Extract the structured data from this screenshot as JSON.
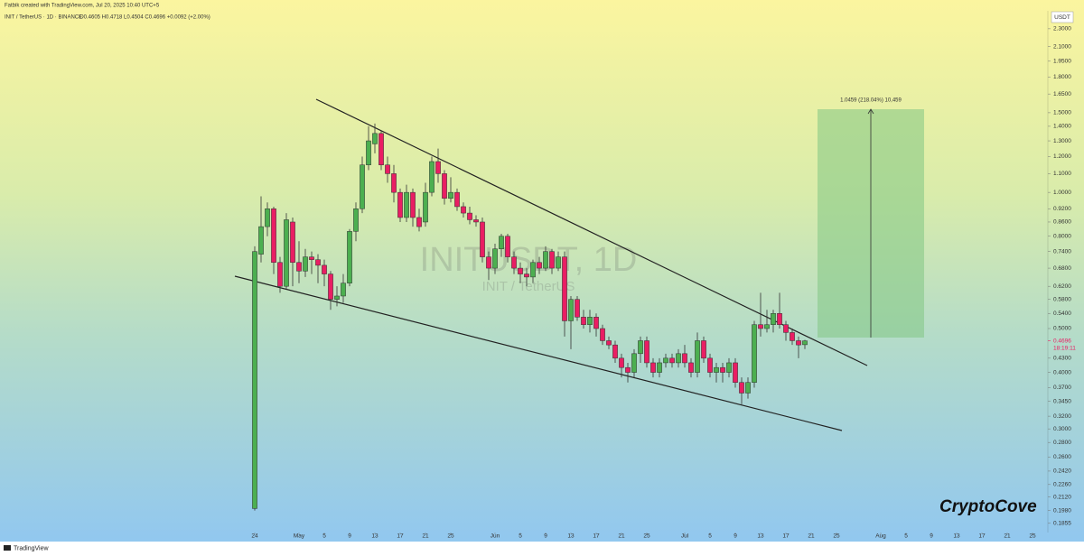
{
  "header": {
    "credit": "Fatbik created with TradingView.com, Jul 20, 2025 10:40 UTC+5",
    "symbol_line": "INIT / TetherUS · 1D · BINANCE",
    "ohlc": "O0.4605 H0.4718 L0.4504 C0.4696 +0.0092 (+2.00%)"
  },
  "chart_data": {
    "type": "candlestick",
    "watermark": "INITUSDT, 1D",
    "watermark_sub": "INIT / TetherUS",
    "y_unit": "USDT",
    "log_scale": true,
    "grid": false,
    "up_color": "#4caf50",
    "down_color": "#e91e63",
    "last_price_label": "0.4696",
    "countdown": "18:19:11",
    "annotation": "1.0459 (218.04%) 10,459",
    "x": [
      "2025-04-24",
      "2025-04-25",
      "2025-04-26",
      "2025-04-27",
      "2025-04-28",
      "2025-04-29",
      "2025-04-30",
      "2025-05-01",
      "2025-05-02",
      "2025-05-03",
      "2025-05-04",
      "2025-05-05",
      "2025-05-06",
      "2025-05-07",
      "2025-05-08",
      "2025-05-09",
      "2025-05-10",
      "2025-05-11",
      "2025-05-12",
      "2025-05-13",
      "2025-05-14",
      "2025-05-15",
      "2025-05-16",
      "2025-05-17",
      "2025-05-18",
      "2025-05-19",
      "2025-05-20",
      "2025-05-21",
      "2025-05-22",
      "2025-05-23",
      "2025-05-24",
      "2025-05-25",
      "2025-05-26",
      "2025-05-27",
      "2025-05-28",
      "2025-05-29",
      "2025-05-30",
      "2025-05-31",
      "2025-06-01",
      "2025-06-02",
      "2025-06-03",
      "2025-06-04",
      "2025-06-05",
      "2025-06-06",
      "2025-06-07",
      "2025-06-08",
      "2025-06-09",
      "2025-06-10",
      "2025-06-11",
      "2025-06-12",
      "2025-06-13",
      "2025-06-14",
      "2025-06-15",
      "2025-06-16",
      "2025-06-17",
      "2025-06-18",
      "2025-06-19",
      "2025-06-20",
      "2025-06-21",
      "2025-06-22",
      "2025-06-23",
      "2025-06-24",
      "2025-06-25",
      "2025-06-26",
      "2025-06-27",
      "2025-06-28",
      "2025-06-29",
      "2025-06-30",
      "2025-07-01",
      "2025-07-02",
      "2025-07-03",
      "2025-07-04",
      "2025-07-05",
      "2025-07-06",
      "2025-07-07",
      "2025-07-08",
      "2025-07-09",
      "2025-07-10",
      "2025-07-11",
      "2025-07-12",
      "2025-07-13",
      "2025-07-14",
      "2025-07-15",
      "2025-07-16",
      "2025-07-17",
      "2025-07-18",
      "2025-07-19",
      "2025-07-20"
    ],
    "open": [
      0.2,
      0.73,
      0.84,
      0.92,
      0.7,
      0.62,
      0.86,
      0.7,
      0.67,
      0.72,
      0.71,
      0.69,
      0.66,
      0.58,
      0.59,
      0.63,
      0.82,
      0.92,
      1.15,
      1.28,
      1.35,
      1.15,
      1.1,
      1.0,
      0.88,
      1.0,
      0.88,
      0.86,
      1.0,
      1.17,
      1.1,
      0.97,
      1.0,
      0.93,
      0.9,
      0.87,
      0.86,
      0.72,
      0.68,
      0.75,
      0.8,
      0.72,
      0.68,
      0.66,
      0.65,
      0.7,
      0.68,
      0.74,
      0.68,
      0.72,
      0.52,
      0.58,
      0.53,
      0.51,
      0.53,
      0.5,
      0.47,
      0.46,
      0.43,
      0.41,
      0.4,
      0.44,
      0.47,
      0.42,
      0.4,
      0.42,
      0.43,
      0.42,
      0.44,
      0.42,
      0.4,
      0.47,
      0.43,
      0.4,
      0.41,
      0.4,
      0.42,
      0.38,
      0.36,
      0.38,
      0.51,
      0.5,
      0.51,
      0.54,
      0.51,
      0.49,
      0.47,
      0.4605
    ],
    "high": [
      0.76,
      0.98,
      0.95,
      0.93,
      0.72,
      0.9,
      0.88,
      0.78,
      0.75,
      0.74,
      0.73,
      0.71,
      0.67,
      0.62,
      0.66,
      0.83,
      0.95,
      1.2,
      1.4,
      1.42,
      1.37,
      1.2,
      1.15,
      1.02,
      1.04,
      1.02,
      0.92,
      1.05,
      1.2,
      1.25,
      1.12,
      1.08,
      1.02,
      0.95,
      0.93,
      0.89,
      0.88,
      0.74,
      0.77,
      0.81,
      0.81,
      0.74,
      0.7,
      0.68,
      0.71,
      0.72,
      0.76,
      0.75,
      0.74,
      0.74,
      0.59,
      0.59,
      0.55,
      0.55,
      0.54,
      0.51,
      0.48,
      0.47,
      0.44,
      0.42,
      0.45,
      0.48,
      0.48,
      0.43,
      0.43,
      0.44,
      0.44,
      0.45,
      0.46,
      0.43,
      0.49,
      0.48,
      0.44,
      0.42,
      0.42,
      0.43,
      0.43,
      0.39,
      0.39,
      0.52,
      0.6,
      0.55,
      0.55,
      0.6,
      0.52,
      0.5,
      0.48,
      0.4718
    ],
    "low": [
      0.198,
      0.7,
      0.8,
      0.66,
      0.6,
      0.61,
      0.62,
      0.63,
      0.65,
      0.66,
      0.63,
      0.62,
      0.55,
      0.56,
      0.57,
      0.62,
      0.78,
      0.9,
      1.12,
      1.22,
      1.12,
      1.05,
      0.95,
      0.86,
      0.86,
      0.84,
      0.82,
      0.84,
      0.98,
      1.05,
      0.94,
      0.95,
      0.91,
      0.88,
      0.85,
      0.84,
      0.7,
      0.64,
      0.66,
      0.72,
      0.7,
      0.66,
      0.63,
      0.62,
      0.63,
      0.66,
      0.67,
      0.66,
      0.67,
      0.48,
      0.45,
      0.52,
      0.5,
      0.49,
      0.48,
      0.46,
      0.45,
      0.42,
      0.39,
      0.38,
      0.39,
      0.42,
      0.41,
      0.39,
      0.39,
      0.41,
      0.41,
      0.41,
      0.41,
      0.39,
      0.39,
      0.42,
      0.39,
      0.38,
      0.38,
      0.39,
      0.37,
      0.34,
      0.35,
      0.37,
      0.48,
      0.49,
      0.49,
      0.5,
      0.47,
      0.46,
      0.43,
      0.4504
    ],
    "close": [
      0.74,
      0.84,
      0.92,
      0.7,
      0.62,
      0.87,
      0.7,
      0.67,
      0.72,
      0.71,
      0.69,
      0.66,
      0.58,
      0.59,
      0.63,
      0.82,
      0.92,
      1.15,
      1.3,
      1.35,
      1.15,
      1.1,
      1.0,
      0.88,
      1.0,
      0.88,
      0.84,
      1.0,
      1.17,
      1.1,
      0.97,
      1.0,
      0.93,
      0.9,
      0.87,
      0.86,
      0.72,
      0.68,
      0.75,
      0.8,
      0.72,
      0.68,
      0.66,
      0.65,
      0.7,
      0.68,
      0.74,
      0.68,
      0.72,
      0.52,
      0.58,
      0.53,
      0.51,
      0.53,
      0.5,
      0.47,
      0.46,
      0.43,
      0.41,
      0.4,
      0.44,
      0.47,
      0.42,
      0.4,
      0.42,
      0.43,
      0.42,
      0.44,
      0.42,
      0.4,
      0.47,
      0.43,
      0.4,
      0.41,
      0.4,
      0.42,
      0.38,
      0.36,
      0.38,
      0.51,
      0.5,
      0.51,
      0.54,
      0.51,
      0.49,
      0.47,
      0.46,
      0.4696
    ],
    "ylim": [
      0.177,
      2.52
    ],
    "yticks": [
      {
        "value": 2.3,
        "label": "2.3000"
      },
      {
        "value": 2.1,
        "label": "2.1000"
      },
      {
        "value": 1.95,
        "label": "1.9500"
      },
      {
        "value": 1.8,
        "label": "1.8000"
      },
      {
        "value": 1.65,
        "label": "1.6500"
      },
      {
        "value": 1.5,
        "label": "1.5000"
      },
      {
        "value": 1.4,
        "label": "1.4000"
      },
      {
        "value": 1.3,
        "label": "1.3000"
      },
      {
        "value": 1.2,
        "label": "1.2000"
      },
      {
        "value": 1.1,
        "label": "1.1000"
      },
      {
        "value": 1.0,
        "label": "1.0000"
      },
      {
        "value": 0.92,
        "label": "0.9200"
      },
      {
        "value": 0.86,
        "label": "0.8600"
      },
      {
        "value": 0.8,
        "label": "0.8000"
      },
      {
        "value": 0.74,
        "label": "0.7400"
      },
      {
        "value": 0.68,
        "label": "0.6800"
      },
      {
        "value": 0.62,
        "label": "0.6200"
      },
      {
        "value": 0.58,
        "label": "0.5800"
      },
      {
        "value": 0.54,
        "label": "0.5400"
      },
      {
        "value": 0.5,
        "label": "0.5000"
      },
      {
        "value": 0.43,
        "label": "0.4300"
      },
      {
        "value": 0.4,
        "label": "0.4000"
      },
      {
        "value": 0.37,
        "label": "0.3700"
      },
      {
        "value": 0.345,
        "label": "0.3450"
      },
      {
        "value": 0.32,
        "label": "0.3200"
      },
      {
        "value": 0.3,
        "label": "0.3000"
      },
      {
        "value": 0.28,
        "label": "0.2800"
      },
      {
        "value": 0.26,
        "label": "0.2600"
      },
      {
        "value": 0.242,
        "label": "0.2420"
      },
      {
        "value": 0.226,
        "label": "0.2260"
      },
      {
        "value": 0.212,
        "label": "0.2120"
      },
      {
        "value": 0.198,
        "label": "0.1980"
      },
      {
        "value": 0.1855,
        "label": "0.1855"
      }
    ],
    "xticks": [
      {
        "value": "2025-04-24",
        "label": "24"
      },
      {
        "value": "2025-05-01",
        "label": "May"
      },
      {
        "value": "2025-05-05",
        "label": "5"
      },
      {
        "value": "2025-05-09",
        "label": "9"
      },
      {
        "value": "2025-05-13",
        "label": "13"
      },
      {
        "value": "2025-05-17",
        "label": "17"
      },
      {
        "value": "2025-05-21",
        "label": "21"
      },
      {
        "value": "2025-05-25",
        "label": "25"
      },
      {
        "value": "2025-06-01",
        "label": "Jun"
      },
      {
        "value": "2025-06-05",
        "label": "5"
      },
      {
        "value": "2025-06-09",
        "label": "9"
      },
      {
        "value": "2025-06-13",
        "label": "13"
      },
      {
        "value": "2025-06-17",
        "label": "17"
      },
      {
        "value": "2025-06-21",
        "label": "21"
      },
      {
        "value": "2025-06-25",
        "label": "25"
      },
      {
        "value": "2025-07-01",
        "label": "Jul"
      },
      {
        "value": "2025-07-05",
        "label": "5"
      },
      {
        "value": "2025-07-09",
        "label": "9"
      },
      {
        "value": "2025-07-13",
        "label": "13"
      },
      {
        "value": "2025-07-17",
        "label": "17"
      },
      {
        "value": "2025-07-21",
        "label": "21"
      },
      {
        "value": "2025-07-25",
        "label": "25"
      },
      {
        "value": "2025-08-01",
        "label": "Aug"
      },
      {
        "value": "2025-08-05",
        "label": "5"
      },
      {
        "value": "2025-08-09",
        "label": "9"
      },
      {
        "value": "2025-08-13",
        "label": "13"
      },
      {
        "value": "2025-08-17",
        "label": "17"
      },
      {
        "value": "2025-08-21",
        "label": "21"
      },
      {
        "value": "2025-08-25",
        "label": "25"
      }
    ]
  },
  "branding": "CryptoCove",
  "footer": "TradingView"
}
